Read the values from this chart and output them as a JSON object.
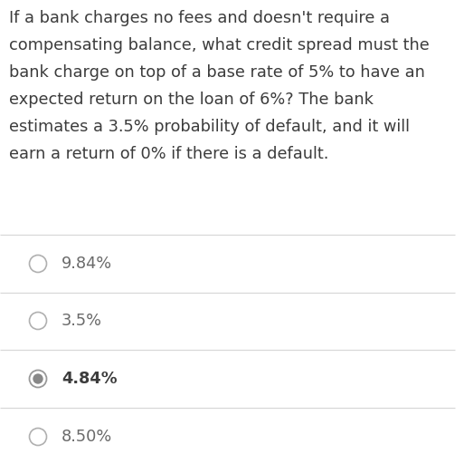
{
  "question_lines": [
    "If a bank charges no fees and doesn't require a",
    "compensating balance, what credit spread must the",
    "bank charge on top of a base rate of 5% to have an",
    "expected return on the loan of 6%? The bank",
    "estimates a 3.5% probability of default, and it will",
    "earn a return of 0% if there is a default."
  ],
  "options": [
    "9.84%",
    "3.5%",
    "4.84%",
    "8.50%"
  ],
  "correct_index": 2,
  "bg_color": "#ffffff",
  "text_color": "#3c3c3c",
  "option_text_color": "#6a6a6a",
  "selected_text_color": "#3c3c3c",
  "line_color": "#d8d8d8",
  "radio_empty_edge": "#b0b0b0",
  "radio_filled_outer": "#999999",
  "radio_filled_inner": "#888888",
  "question_fontsize": 12.8,
  "option_fontsize": 12.8,
  "fig_width": 5.13,
  "fig_height": 5.01,
  "dpi": 100
}
